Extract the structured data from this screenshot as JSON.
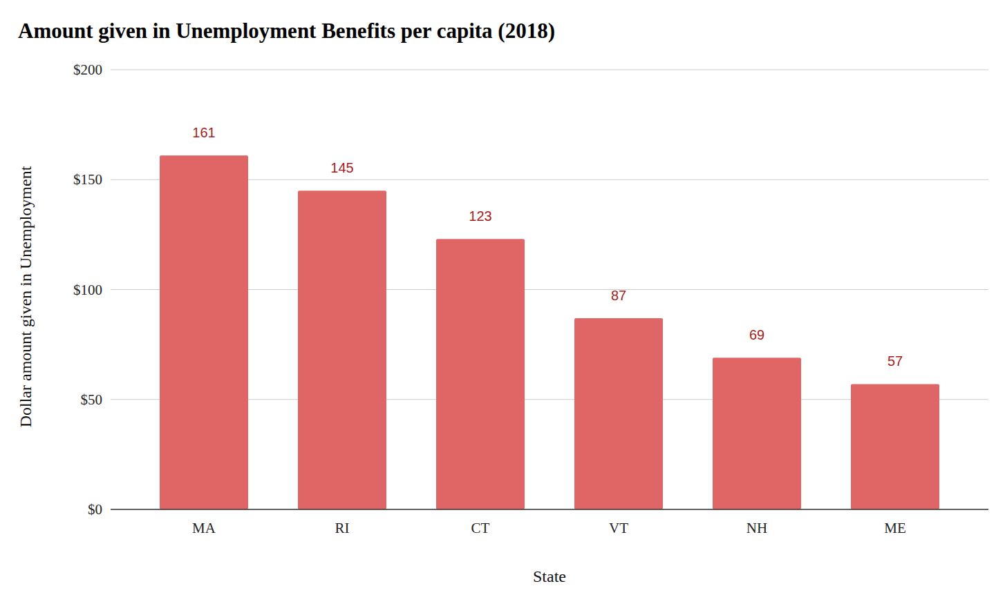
{
  "chart_data": {
    "type": "bar",
    "title": "Amount given in Unemployment Benefits per capita (2018)",
    "x_label": "State",
    "y_label": "Dollar amount given in Unemployment",
    "categories": [
      "MA",
      "RI",
      "CT",
      "VT",
      "NH",
      "ME"
    ],
    "values": [
      161,
      145,
      123,
      87,
      69,
      57
    ],
    "color": "#e06666",
    "ylim": [
      0,
      200
    ],
    "yticks": [
      {
        "value": 0,
        "label": "$0"
      },
      {
        "value": 50,
        "label": "$50"
      },
      {
        "value": 100,
        "label": "$100"
      },
      {
        "value": 150,
        "label": "$150"
      },
      {
        "value": 200,
        "label": "$200"
      }
    ],
    "grid": true,
    "data_labels": true
  }
}
